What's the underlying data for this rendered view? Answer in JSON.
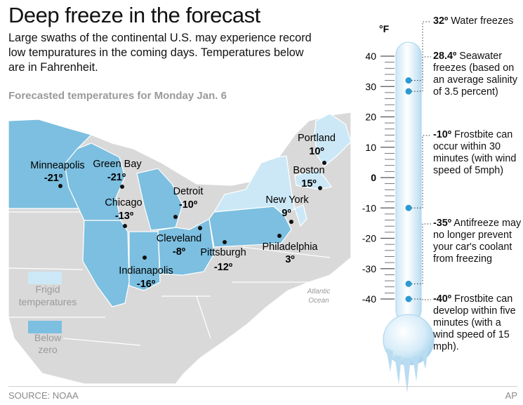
{
  "header": {
    "title": "Deep freeze in the forecast",
    "subtitle": "Large swaths of the continental U.S. may experience record low tempuratures in the coming days. Temperatures below are in Fahrenheit."
  },
  "map": {
    "title": "Forecasted temperatures for Monday Jan. 6",
    "ocean_label": [
      "Atlantic",
      "Ocean"
    ],
    "legend": [
      {
        "label": [
          "Frigid",
          "temperatures"
        ],
        "color": "#cce8f7"
      },
      {
        "label": [
          "Below",
          "zero"
        ],
        "color": "#7cbfe0"
      }
    ],
    "cities": [
      {
        "name": "Minneapolis",
        "temp": "-21º"
      },
      {
        "name": "Green Bay",
        "temp": "-21º"
      },
      {
        "name": "Detroit",
        "temp": "-10º"
      },
      {
        "name": "Chicago",
        "temp": "-13º"
      },
      {
        "name": "Cleveland",
        "temp": "-8º"
      },
      {
        "name": "Pittsburgh",
        "temp": "-12º"
      },
      {
        "name": "Indianapolis",
        "temp": "-16º"
      },
      {
        "name": "Philadelphia",
        "temp": "3º"
      },
      {
        "name": "New York",
        "temp": "9º"
      },
      {
        "name": "Boston",
        "temp": "15º"
      },
      {
        "name": "Portland",
        "temp": "10º"
      }
    ]
  },
  "chart_data": {
    "type": "thermometer",
    "unit_label": "°F",
    "ticks": [
      "40",
      "30",
      "20",
      "10",
      "0",
      "-10",
      "-20",
      "-30",
      "-40"
    ],
    "ylim": [
      -40,
      40
    ],
    "markers": [
      {
        "value": 32,
        "label": "32º",
        "text": "Water freezes"
      },
      {
        "value": 28.4,
        "label": "28.4º",
        "text": "Seawater freezes (based on an average salinity of 3.5 percent)"
      },
      {
        "value": -10,
        "label": "-10º",
        "text": "Frostbite can occur within 30 minutes (with wind speed of 5mph)"
      },
      {
        "value": -35,
        "label": "-35º",
        "text": "Antifreeze may no longer prevent your car's coolant from freezing"
      },
      {
        "value": -40,
        "label": "-40º",
        "text": "Frostbite can develop within five minutes (with a wind speed of 15 mph)."
      }
    ]
  },
  "colors": {
    "frigid": "#cce8f7",
    "below_zero": "#7cbfe0",
    "land": "#d9d9d9",
    "marker": "#2b9ad2"
  },
  "footer": {
    "source": "SOURCE: NOAA",
    "credit": "AP"
  }
}
